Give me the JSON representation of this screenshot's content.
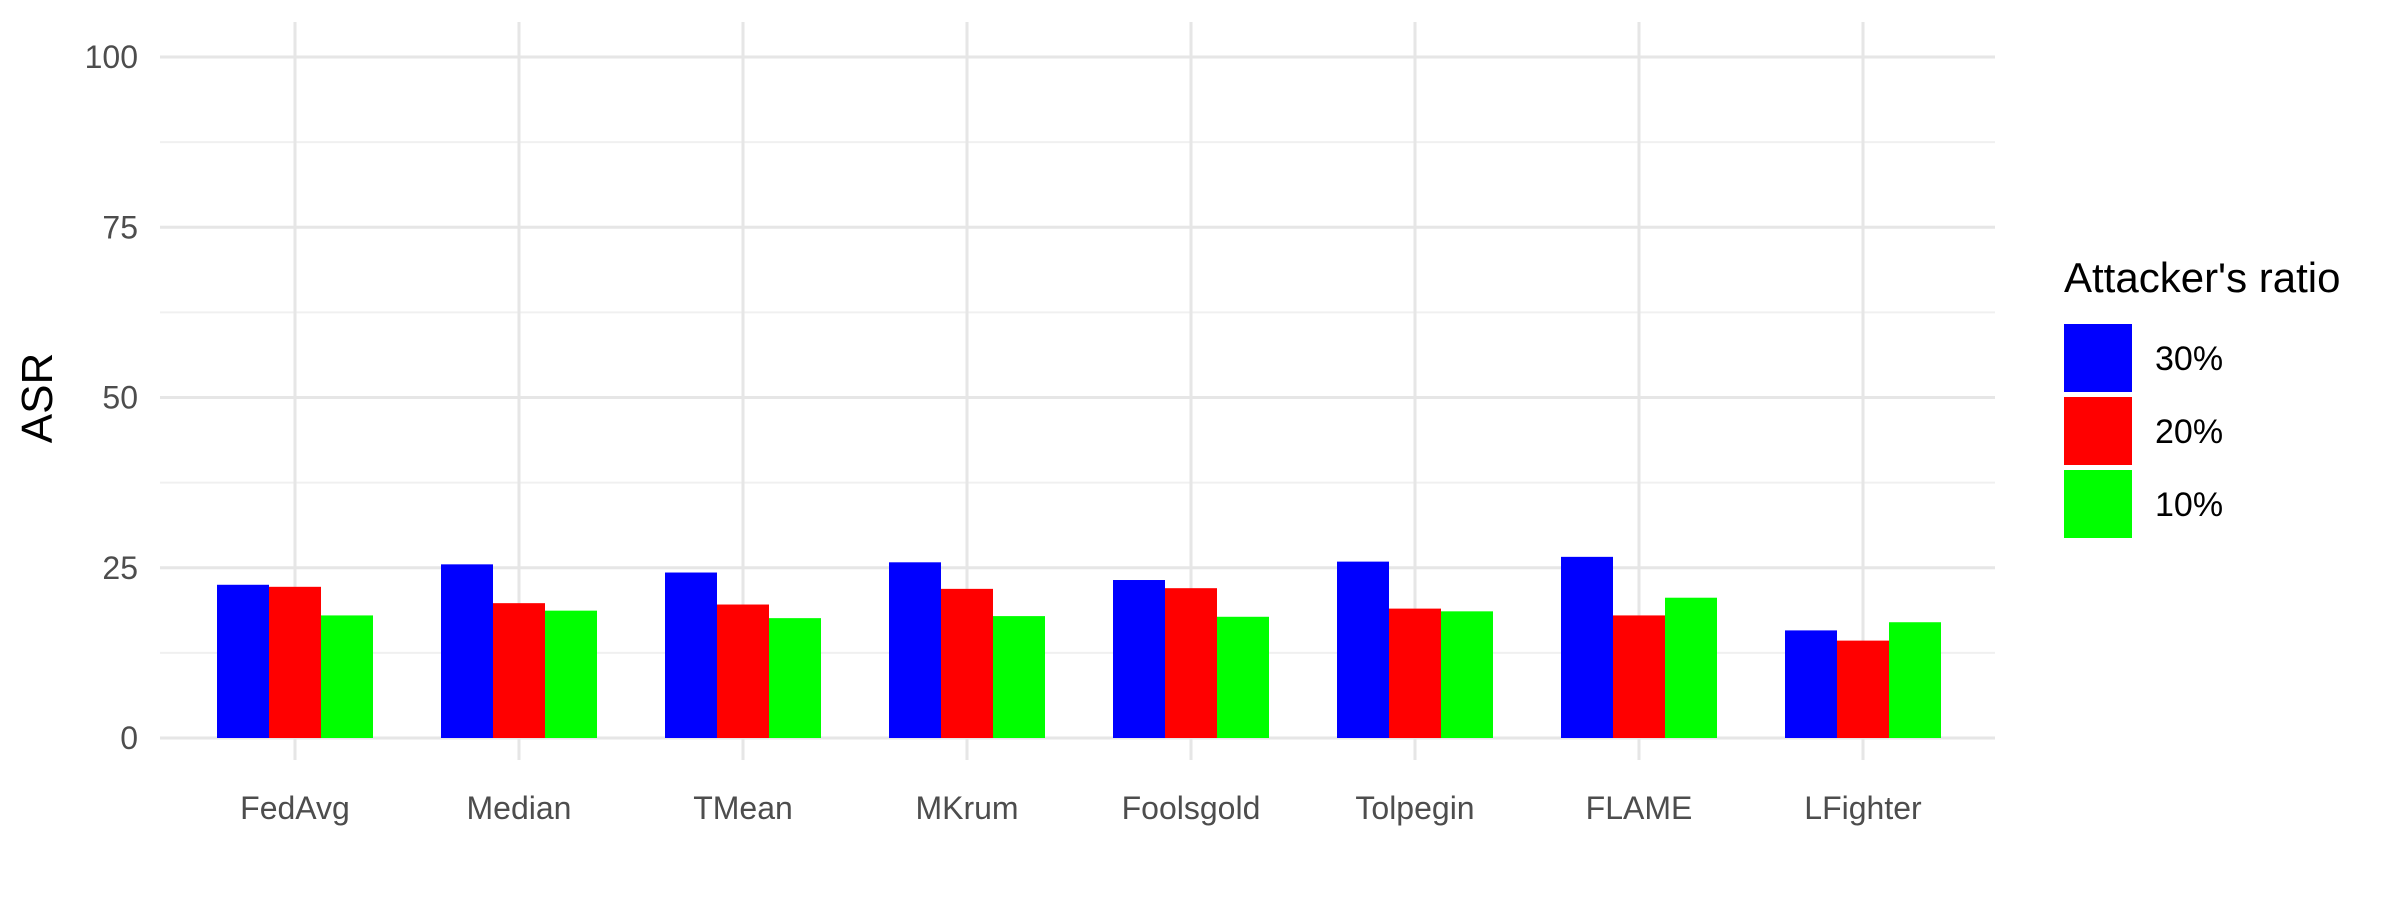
{
  "chart_data": {
    "type": "bar",
    "title": "",
    "xlabel": "",
    "ylabel": "ASR",
    "ylim": [
      0,
      100
    ],
    "yticks": [
      0,
      25,
      50,
      75,
      100
    ],
    "grid": true,
    "legend_position": "right",
    "legend_title": "Attacker's ratio",
    "categories": [
      "FedAvg",
      "Median",
      "TMean",
      "MKrum",
      "Foolsgold",
      "Tolpegin",
      "FLAME",
      "LFighter"
    ],
    "series": [
      {
        "name": "30%",
        "color": "#0000FF",
        "values": [
          22.5,
          25.5,
          24.3,
          25.8,
          23.2,
          25.9,
          26.6,
          15.8
        ]
      },
      {
        "name": "20%",
        "color": "#FF0000",
        "values": [
          22.2,
          19.8,
          19.6,
          21.9,
          22.0,
          19.0,
          18.0,
          14.3
        ]
      },
      {
        "name": "10%",
        "color": "#00FF00",
        "values": [
          18.0,
          18.7,
          17.6,
          17.9,
          17.8,
          18.6,
          20.6,
          17.0
        ]
      }
    ]
  }
}
